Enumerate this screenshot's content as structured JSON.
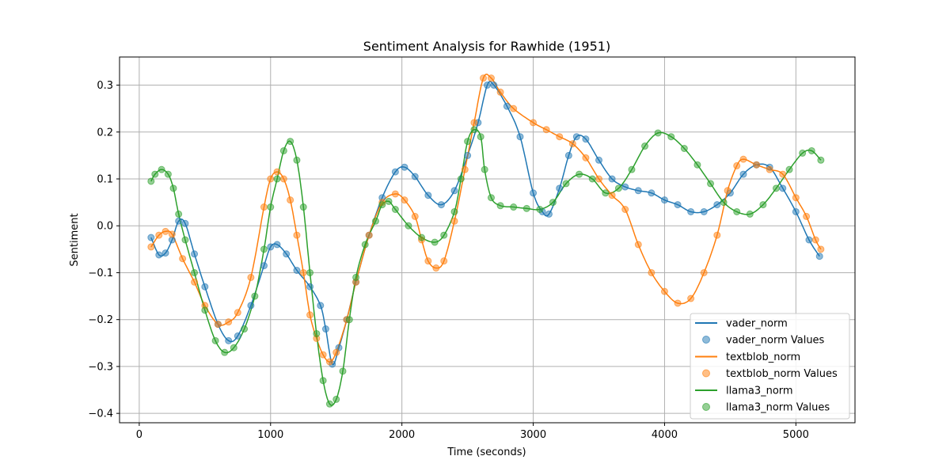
{
  "chart_data": {
    "type": "line",
    "title": "Sentiment Analysis for Rawhide (1951)",
    "xlabel": "Time (seconds)",
    "ylabel": "Sentiment",
    "xlim": [
      -150,
      5450
    ],
    "ylim": [
      -0.42,
      0.36
    ],
    "xticks": [
      0,
      1000,
      2000,
      3000,
      4000,
      5000
    ],
    "yticks": [
      -0.4,
      -0.3,
      -0.2,
      -0.1,
      0.0,
      0.1,
      0.2,
      0.3
    ],
    "yticklabels": [
      "−0.4",
      "−0.3",
      "−0.2",
      "−0.1",
      "0.0",
      "0.1",
      "0.2",
      "0.3"
    ],
    "grid": true,
    "legend_position": "lower-right",
    "legend": [
      "vader_norm",
      "vader_norm Values",
      "textblob_norm",
      "textblob_norm Values",
      "llama3_norm",
      "llama3_norm Values"
    ],
    "series": [
      {
        "name": "vader_norm",
        "color": "#1f77b4",
        "points": [
          [
            90,
            -0.025
          ],
          [
            150,
            -0.062
          ],
          [
            200,
            -0.058
          ],
          [
            250,
            -0.03
          ],
          [
            300,
            0.01
          ],
          [
            350,
            0.005
          ],
          [
            420,
            -0.06
          ],
          [
            500,
            -0.13
          ],
          [
            600,
            -0.21
          ],
          [
            680,
            -0.245
          ],
          [
            750,
            -0.235
          ],
          [
            850,
            -0.17
          ],
          [
            950,
            -0.085
          ],
          [
            1000,
            -0.045
          ],
          [
            1050,
            -0.04
          ],
          [
            1120,
            -0.06
          ],
          [
            1200,
            -0.095
          ],
          [
            1300,
            -0.13
          ],
          [
            1380,
            -0.17
          ],
          [
            1420,
            -0.22
          ],
          [
            1470,
            -0.295
          ],
          [
            1520,
            -0.26
          ],
          [
            1580,
            -0.2
          ],
          [
            1650,
            -0.12
          ],
          [
            1750,
            -0.02
          ],
          [
            1850,
            0.06
          ],
          [
            1950,
            0.115
          ],
          [
            2020,
            0.125
          ],
          [
            2100,
            0.105
          ],
          [
            2200,
            0.065
          ],
          [
            2300,
            0.045
          ],
          [
            2400,
            0.075
          ],
          [
            2500,
            0.15
          ],
          [
            2580,
            0.22
          ],
          [
            2650,
            0.3
          ],
          [
            2700,
            0.3
          ],
          [
            2800,
            0.255
          ],
          [
            2900,
            0.19
          ],
          [
            3000,
            0.07
          ],
          [
            3070,
            0.03
          ],
          [
            3120,
            0.025
          ],
          [
            3200,
            0.08
          ],
          [
            3270,
            0.15
          ],
          [
            3330,
            0.19
          ],
          [
            3400,
            0.185
          ],
          [
            3500,
            0.14
          ],
          [
            3600,
            0.1
          ],
          [
            3700,
            0.083
          ],
          [
            3800,
            0.075
          ],
          [
            3900,
            0.07
          ],
          [
            4000,
            0.055
          ],
          [
            4100,
            0.045
          ],
          [
            4200,
            0.03
          ],
          [
            4300,
            0.03
          ],
          [
            4400,
            0.045
          ],
          [
            4500,
            0.07
          ],
          [
            4600,
            0.11
          ],
          [
            4700,
            0.13
          ],
          [
            4800,
            0.125
          ],
          [
            4900,
            0.08
          ],
          [
            5000,
            0.03
          ],
          [
            5100,
            -0.03
          ],
          [
            5180,
            -0.065
          ]
        ]
      },
      {
        "name": "textblob_norm",
        "color": "#ff7f0e",
        "points": [
          [
            90,
            -0.045
          ],
          [
            150,
            -0.02
          ],
          [
            200,
            -0.012
          ],
          [
            250,
            -0.018
          ],
          [
            330,
            -0.07
          ],
          [
            420,
            -0.12
          ],
          [
            500,
            -0.17
          ],
          [
            600,
            -0.21
          ],
          [
            680,
            -0.205
          ],
          [
            750,
            -0.185
          ],
          [
            850,
            -0.11
          ],
          [
            950,
            0.04
          ],
          [
            1000,
            0.1
          ],
          [
            1050,
            0.115
          ],
          [
            1100,
            0.1
          ],
          [
            1150,
            0.055
          ],
          [
            1200,
            -0.02
          ],
          [
            1250,
            -0.1
          ],
          [
            1300,
            -0.19
          ],
          [
            1350,
            -0.24
          ],
          [
            1400,
            -0.275
          ],
          [
            1450,
            -0.29
          ],
          [
            1500,
            -0.27
          ],
          [
            1580,
            -0.2
          ],
          [
            1650,
            -0.12
          ],
          [
            1750,
            -0.02
          ],
          [
            1850,
            0.05
          ],
          [
            1950,
            0.068
          ],
          [
            2020,
            0.055
          ],
          [
            2100,
            0.02
          ],
          [
            2150,
            -0.03
          ],
          [
            2200,
            -0.075
          ],
          [
            2260,
            -0.09
          ],
          [
            2320,
            -0.075
          ],
          [
            2400,
            0.01
          ],
          [
            2480,
            0.12
          ],
          [
            2550,
            0.22
          ],
          [
            2620,
            0.315
          ],
          [
            2680,
            0.315
          ],
          [
            2750,
            0.285
          ],
          [
            2850,
            0.25
          ],
          [
            3000,
            0.22
          ],
          [
            3100,
            0.205
          ],
          [
            3200,
            0.19
          ],
          [
            3300,
            0.175
          ],
          [
            3400,
            0.145
          ],
          [
            3500,
            0.1
          ],
          [
            3600,
            0.065
          ],
          [
            3700,
            0.035
          ],
          [
            3800,
            -0.04
          ],
          [
            3900,
            -0.1
          ],
          [
            4000,
            -0.14
          ],
          [
            4100,
            -0.165
          ],
          [
            4200,
            -0.155
          ],
          [
            4300,
            -0.1
          ],
          [
            4400,
            -0.02
          ],
          [
            4480,
            0.075
          ],
          [
            4550,
            0.128
          ],
          [
            4600,
            0.142
          ],
          [
            4700,
            0.13
          ],
          [
            4800,
            0.12
          ],
          [
            4900,
            0.11
          ],
          [
            5000,
            0.06
          ],
          [
            5080,
            0.02
          ],
          [
            5150,
            -0.03
          ],
          [
            5190,
            -0.05
          ]
        ]
      },
      {
        "name": "llama3_norm",
        "color": "#2ca02c",
        "points": [
          [
            90,
            0.095
          ],
          [
            120,
            0.11
          ],
          [
            170,
            0.12
          ],
          [
            220,
            0.11
          ],
          [
            260,
            0.08
          ],
          [
            300,
            0.025
          ],
          [
            350,
            -0.03
          ],
          [
            420,
            -0.1
          ],
          [
            500,
            -0.18
          ],
          [
            580,
            -0.245
          ],
          [
            650,
            -0.27
          ],
          [
            720,
            -0.26
          ],
          [
            800,
            -0.22
          ],
          [
            880,
            -0.15
          ],
          [
            950,
            -0.05
          ],
          [
            1000,
            0.04
          ],
          [
            1050,
            0.1
          ],
          [
            1100,
            0.16
          ],
          [
            1150,
            0.18
          ],
          [
            1200,
            0.14
          ],
          [
            1250,
            0.04
          ],
          [
            1300,
            -0.1
          ],
          [
            1350,
            -0.23
          ],
          [
            1400,
            -0.33
          ],
          [
            1450,
            -0.38
          ],
          [
            1500,
            -0.37
          ],
          [
            1550,
            -0.31
          ],
          [
            1600,
            -0.2
          ],
          [
            1650,
            -0.11
          ],
          [
            1720,
            -0.04
          ],
          [
            1800,
            0.01
          ],
          [
            1850,
            0.045
          ],
          [
            1900,
            0.052
          ],
          [
            1950,
            0.035
          ],
          [
            2050,
            0.0
          ],
          [
            2150,
            -0.025
          ],
          [
            2250,
            -0.035
          ],
          [
            2320,
            -0.02
          ],
          [
            2400,
            0.03
          ],
          [
            2450,
            0.1
          ],
          [
            2500,
            0.18
          ],
          [
            2550,
            0.205
          ],
          [
            2600,
            0.19
          ],
          [
            2630,
            0.12
          ],
          [
            2680,
            0.06
          ],
          [
            2750,
            0.043
          ],
          [
            2850,
            0.04
          ],
          [
            2950,
            0.037
          ],
          [
            3050,
            0.035
          ],
          [
            3150,
            0.05
          ],
          [
            3250,
            0.09
          ],
          [
            3350,
            0.11
          ],
          [
            3450,
            0.1
          ],
          [
            3550,
            0.07
          ],
          [
            3650,
            0.08
          ],
          [
            3750,
            0.12
          ],
          [
            3850,
            0.17
          ],
          [
            3950,
            0.198
          ],
          [
            4050,
            0.19
          ],
          [
            4150,
            0.165
          ],
          [
            4250,
            0.13
          ],
          [
            4350,
            0.09
          ],
          [
            4450,
            0.05
          ],
          [
            4550,
            0.03
          ],
          [
            4650,
            0.025
          ],
          [
            4750,
            0.045
          ],
          [
            4850,
            0.08
          ],
          [
            4950,
            0.12
          ],
          [
            5050,
            0.155
          ],
          [
            5120,
            0.16
          ],
          [
            5190,
            0.14
          ]
        ]
      }
    ]
  }
}
